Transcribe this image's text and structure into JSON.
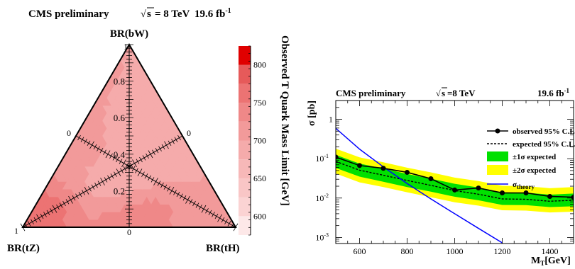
{
  "left_panel": {
    "header": "CMS preliminary",
    "energy": "= 8 TeV",
    "lumi": "19.6 fb",
    "lumi_exp": "-1",
    "vertex_top": "BR(bW)",
    "vertex_left": "BR(tZ)",
    "vertex_right": "BR(tH)",
    "colorbar_title": "Observed T Quark Mass Limit [GeV]"
  },
  "right_panel": {
    "header": "CMS preliminary",
    "energy": "=8 TeV",
    "lumi": "19.6 fb",
    "lumi_exp": "-1",
    "ylabel": "σ [pb]",
    "xlabel_main": "M",
    "xlabel_sub": "T",
    "xlabel_unit": "[GeV]"
  },
  "colors": {
    "observed": "#000000",
    "expected": "#000000",
    "band_1sigma": "#00e000",
    "band_2sigma": "#ffff00",
    "theory": "#0000ff"
  },
  "chart_data": [
    {
      "type": "heatmap",
      "subtype": "ternary",
      "title": "CMS preliminary √s = 8 TeV 19.6 fb-1",
      "axes": [
        "BR(bW)",
        "BR(tZ)",
        "BR(tH)"
      ],
      "axis_ticks": [
        "0",
        "0.2",
        "0.4",
        "0.6",
        "0.8",
        "1"
      ],
      "colorbar": {
        "label": "Observed T Quark Mass Limit [GeV]",
        "min": 575,
        "max": 825,
        "ticks": [
          "600",
          "650",
          "700",
          "750",
          "800"
        ],
        "bins": [
          {
            "from": 575,
            "to": 600,
            "color": "#fde8e8"
          },
          {
            "from": 600,
            "to": 625,
            "color": "#fbd3d3"
          },
          {
            "from": 625,
            "to": 650,
            "color": "#f9c6c6"
          },
          {
            "from": 650,
            "to": 675,
            "color": "#f7b8b8"
          },
          {
            "from": 675,
            "to": 700,
            "color": "#f5abab"
          },
          {
            "from": 700,
            "to": 725,
            "color": "#f29a9a"
          },
          {
            "from": 725,
            "to": 750,
            "color": "#ef8888"
          },
          {
            "from": 750,
            "to": 775,
            "color": "#ec7373"
          },
          {
            "from": 775,
            "to": 800,
            "color": "#e65a5a"
          },
          {
            "from": 800,
            "to": 825,
            "color": "#e00000"
          }
        ]
      },
      "cells": [
        {
          "bW": 1.0,
          "tH": 0.0,
          "limit": 700
        },
        {
          "bW": 0.5,
          "tH": 0.0,
          "limit": 720
        },
        {
          "bW": 0.0,
          "tH": 0.0,
          "limit": 760
        },
        {
          "bW": 0.0,
          "tH": 0.5,
          "limit": 730
        },
        {
          "bW": 0.0,
          "tH": 1.0,
          "limit": 700
        },
        {
          "bW": 0.33,
          "tH": 0.33,
          "limit": 690
        },
        {
          "bW": 0.5,
          "tH": 0.5,
          "limit": 680
        },
        {
          "bW": 0.6,
          "tH": 0.2,
          "limit": 690
        }
      ]
    },
    {
      "type": "line",
      "title": "CMS preliminary √s=8 TeV 19.6 fb-1",
      "xlabel": "M_T [GeV]",
      "ylabel": "σ [pb]",
      "xlim": [
        500,
        1500
      ],
      "ylim": [
        0.0007,
        3
      ],
      "yscale": "log",
      "x_ticks": [
        600,
        800,
        1000,
        1200,
        1400
      ],
      "y_ticks": [
        {
          "v": 0.001,
          "label": "10",
          "exp": "-3"
        },
        {
          "v": 0.01,
          "label": "10",
          "exp": "-2"
        },
        {
          "v": 0.1,
          "label": "10",
          "exp": "-1"
        },
        {
          "v": 1,
          "label": "1",
          "exp": ""
        }
      ],
      "legend_position": "top-right",
      "legend": [
        "observed 95% C.L.",
        "expected 95% C.L.",
        "±1σ expected",
        "±2σ expected",
        "σ"
      ],
      "legend_theory_sub": "theory",
      "x": [
        500,
        600,
        700,
        800,
        900,
        1000,
        1100,
        1200,
        1300,
        1400,
        1500
      ],
      "series": [
        {
          "name": "observed 95% C.L.",
          "values": [
            0.11,
            0.067,
            0.057,
            0.045,
            0.031,
            0.016,
            0.018,
            0.0135,
            0.0135,
            0.011,
            0.0105
          ]
        },
        {
          "name": "expected 95% C.L.",
          "values": [
            0.085,
            0.051,
            0.038,
            0.028,
            0.021,
            0.0155,
            0.0125,
            0.0095,
            0.0093,
            0.0083,
            0.0088
          ]
        },
        {
          "name": "±1σ expected",
          "lower": [
            0.058,
            0.035,
            0.026,
            0.019,
            0.0145,
            0.0108,
            0.0088,
            0.0067,
            0.0066,
            0.0059,
            0.0062
          ],
          "upper": [
            0.125,
            0.075,
            0.056,
            0.041,
            0.031,
            0.023,
            0.0185,
            0.014,
            0.0137,
            0.0122,
            0.013
          ]
        },
        {
          "name": "±2σ expected",
          "lower": [
            0.042,
            0.025,
            0.019,
            0.014,
            0.0105,
            0.0078,
            0.0064,
            0.0049,
            0.0048,
            0.0043,
            0.0045
          ],
          "upper": [
            0.18,
            0.108,
            0.081,
            0.059,
            0.045,
            0.033,
            0.027,
            0.0205,
            0.02,
            0.0178,
            0.019
          ]
        },
        {
          "name": "σ theory",
          "x": [
            500,
            600,
            700,
            800,
            900,
            1000,
            1100,
            1200
          ],
          "values": [
            0.59,
            0.175,
            0.062,
            0.0234,
            0.0095,
            0.004,
            0.0017,
            0.00073
          ]
        }
      ]
    }
  ]
}
